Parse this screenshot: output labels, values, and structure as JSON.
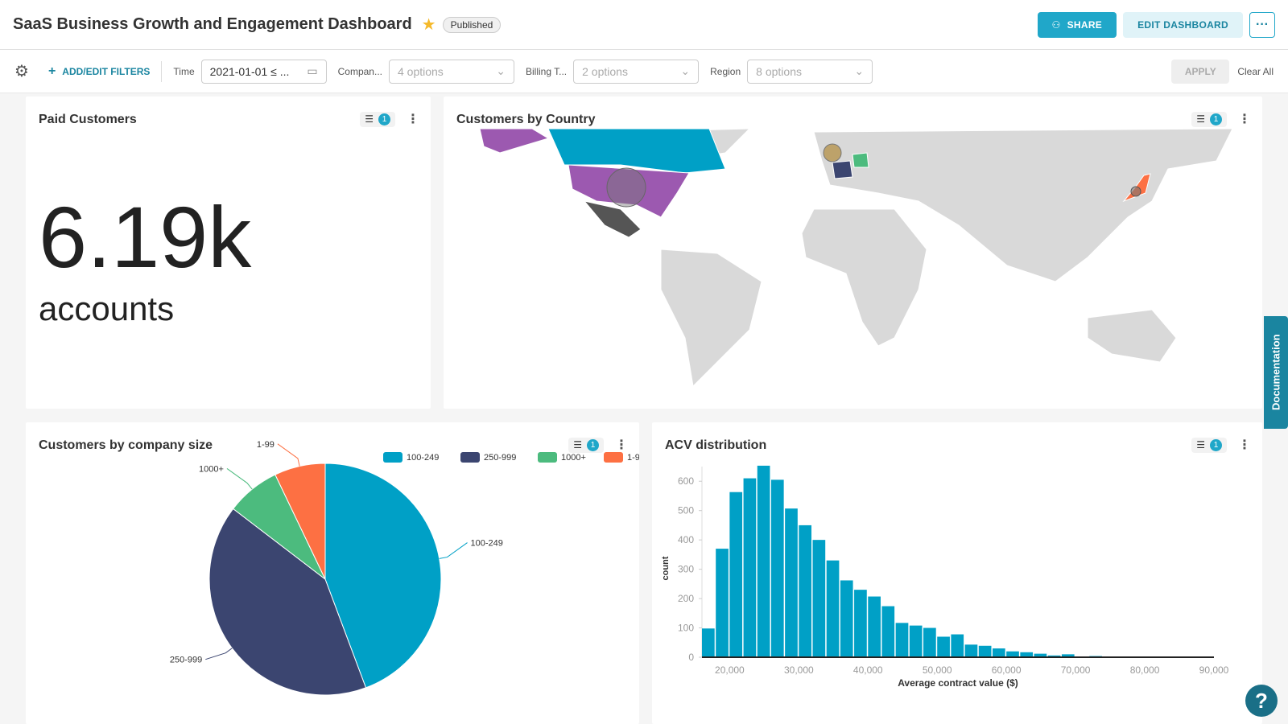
{
  "header": {
    "title": "SaaS Business Growth and Engagement Dashboard",
    "status": "Published",
    "share": "SHARE",
    "edit": "EDIT DASHBOARD",
    "more": "···"
  },
  "filters": {
    "add": "ADD/EDIT FILTERS",
    "items": [
      {
        "label": "Time",
        "value": "2021-01-01 ≤ ..."
      },
      {
        "label": "Compan...",
        "value": "4 options"
      },
      {
        "label": "Billing T...",
        "value": "2 options"
      },
      {
        "label": "Region",
        "value": "8 options"
      }
    ],
    "apply": "APPLY",
    "clear": "Clear All"
  },
  "colors": {
    "accent": "#20a7c9",
    "teal": "#00a0c6",
    "navy": "#3b4570",
    "green": "#4cbb7e",
    "orange": "#fd7043",
    "purple": "#9c59b0"
  },
  "cards": {
    "paid": {
      "title": "Paid Customers",
      "value": "6.19k",
      "unit": "accounts",
      "filter_count": "1"
    },
    "country": {
      "title": "Customers by Country",
      "filter_count": "1"
    },
    "size": {
      "title": "Customers by company size",
      "filter_count": "1"
    },
    "acv": {
      "title": "ACV distribution",
      "filter_count": "1"
    }
  },
  "doc_tab": "Documentation",
  "help": "?",
  "chart_data": [
    {
      "type": "pie",
      "title": "Customers by company size",
      "legend_placement": "top-right",
      "categories": [
        "100-249",
        "250-999",
        "1000+",
        "1-99"
      ],
      "values": [
        44.3,
        41.1,
        7.5,
        7.1
      ],
      "colors": [
        "#00a0c6",
        "#3b4570",
        "#4cbb7e",
        "#fd7043"
      ]
    },
    {
      "type": "bar",
      "title": "ACV distribution",
      "xlabel": "Average contract value ($)",
      "ylabel": "count",
      "xlim": [
        16000,
        90000
      ],
      "ylim": [
        0,
        650
      ],
      "bin_width": 2000,
      "bin_starts": [
        16000,
        18000,
        20000,
        22000,
        24000,
        26000,
        28000,
        30000,
        32000,
        34000,
        36000,
        38000,
        40000,
        42000,
        44000,
        46000,
        48000,
        50000,
        52000,
        54000,
        56000,
        58000,
        60000,
        62000,
        64000,
        66000,
        68000,
        70000,
        72000
      ],
      "values": [
        98,
        370,
        563,
        610,
        653,
        605,
        507,
        450,
        400,
        330,
        262,
        230,
        207,
        174,
        117,
        108,
        100,
        70,
        78,
        43,
        39,
        30,
        20,
        17,
        12,
        6,
        10,
        2,
        4
      ],
      "xticks": [
        "20,000",
        "30,000",
        "40,000",
        "50,000",
        "60,000",
        "70,000",
        "80,000",
        "90,000"
      ],
      "yticks": [
        "0",
        "100",
        "200",
        "300",
        "400",
        "500",
        "600"
      ],
      "color": "#00a0c6"
    }
  ]
}
